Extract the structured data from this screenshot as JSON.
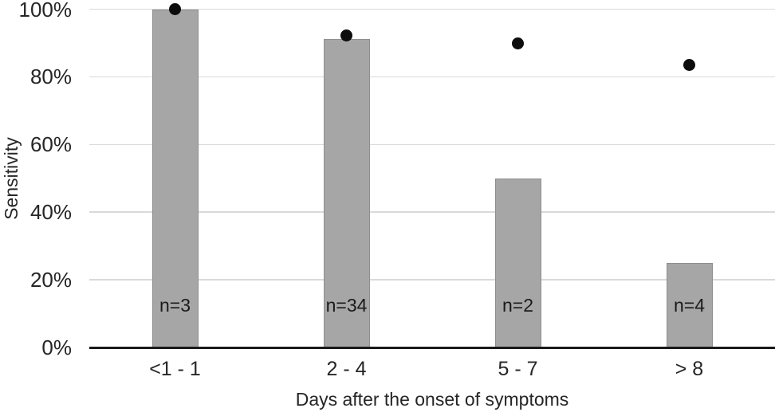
{
  "chart_data": {
    "type": "bar",
    "categories": [
      "<1 - 1",
      "2 - 4",
      "5 - 7",
      "> 8"
    ],
    "series": [
      {
        "name": "bars",
        "type": "bar",
        "values": [
          100,
          91.2,
          50,
          25
        ]
      },
      {
        "name": "dots",
        "type": "scatter",
        "values": [
          100,
          92.3,
          89.9,
          83.5
        ]
      }
    ],
    "bar_labels": [
      "n=3",
      "n=34",
      "n=2",
      "n=4"
    ],
    "title": "",
    "xlabel": "Days after the onset of symptoms",
    "ylabel": "Sensitivity",
    "ylim": [
      0,
      100
    ],
    "yticks": [
      {
        "value": 0,
        "label": "0%"
      },
      {
        "value": 20,
        "label": "20%"
      },
      {
        "value": 40,
        "label": "40%"
      },
      {
        "value": 60,
        "label": "60%"
      },
      {
        "value": 80,
        "label": "80%"
      },
      {
        "value": 100,
        "label": "100%"
      }
    ],
    "grid": "horizontal",
    "legend": "none",
    "colors": {
      "bar_fill": "#a6a6a6",
      "bar_border": "#8e8e8e",
      "dot": "#0d0d0d",
      "gridline": "#d9d9d9",
      "axis_line": "#1a1a1a",
      "text": "#262626",
      "background": "#ffffff"
    }
  }
}
